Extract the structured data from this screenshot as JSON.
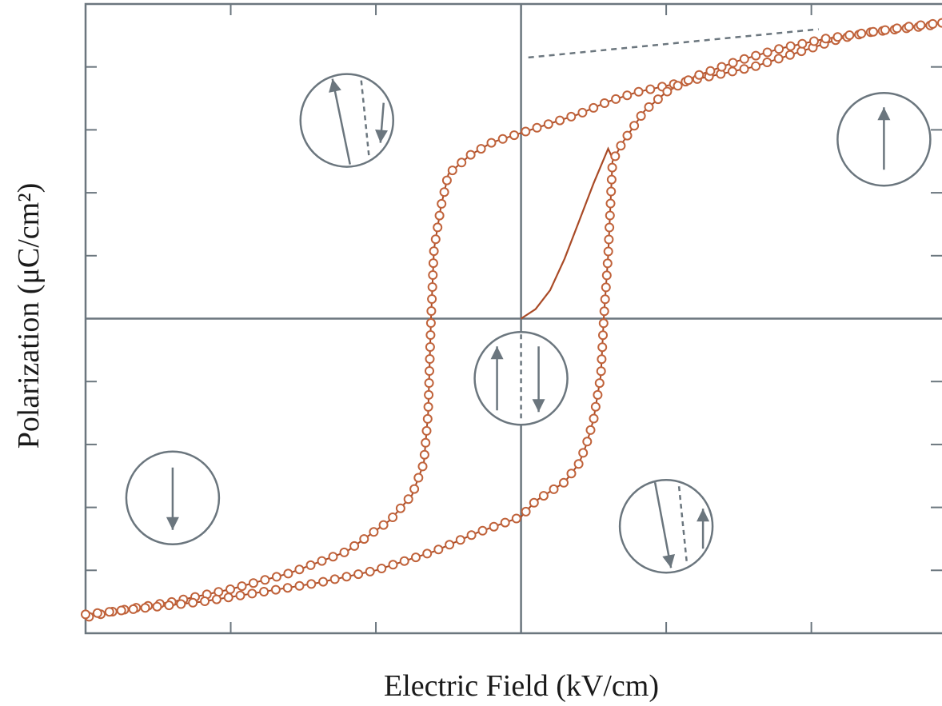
{
  "chart_data": {
    "type": "line",
    "xlabel": "Electric Field (kV/cm)",
    "ylabel": "Polarization (μC/cm²)",
    "xlim": [
      -3,
      2.9
    ],
    "ylim": [
      -5,
      5
    ],
    "x_ticks": [
      -2,
      -1,
      0,
      1,
      2
    ],
    "y_ticks": [
      -4,
      -3,
      -2,
      -1,
      1,
      2,
      3,
      4
    ],
    "zero_lines": true,
    "grid": false,
    "legend": "none",
    "series": [
      {
        "role": "upper-branch",
        "marker": "open-circle",
        "x": [
          2.9,
          2.8,
          2.6,
          2.4,
          2.2,
          2.0,
          1.8,
          1.6,
          1.4,
          1.2,
          1.0,
          0.8,
          0.6,
          0.4,
          0.2,
          0.0,
          -0.2,
          -0.35,
          -0.5,
          -0.55,
          -0.6,
          -0.62,
          -0.64,
          -0.67,
          -0.75,
          -0.9,
          -1.2,
          -1.6,
          -2.0,
          -2.4,
          -2.8,
          -3.0
        ],
        "y": [
          4.7,
          4.65,
          4.6,
          4.55,
          4.45,
          4.3,
          4.15,
          4.0,
          3.9,
          3.8,
          3.7,
          3.6,
          3.45,
          3.25,
          3.1,
          2.95,
          2.8,
          2.6,
          2.3,
          1.8,
          1.1,
          0.0,
          -1.5,
          -2.3,
          -2.8,
          -3.2,
          -3.7,
          -4.05,
          -4.3,
          -4.5,
          -4.65,
          -4.75
        ]
      },
      {
        "role": "lower-branch",
        "marker": "open-circle",
        "x": [
          -3.0,
          -2.6,
          -2.2,
          -1.8,
          -1.4,
          -1.0,
          -0.6,
          -0.3,
          0.0,
          0.1,
          0.3,
          0.4,
          0.45,
          0.5,
          0.55,
          0.57,
          0.6,
          0.63,
          0.7,
          0.85,
          1.0,
          1.2,
          1.5,
          1.8,
          2.1,
          2.4,
          2.7,
          2.9
        ],
        "y": [
          -4.7,
          -4.6,
          -4.5,
          -4.35,
          -4.2,
          -4.0,
          -3.7,
          -3.4,
          -3.15,
          -2.9,
          -2.6,
          -2.3,
          -2.0,
          -1.6,
          -0.9,
          0.0,
          1.0,
          2.5,
          2.8,
          3.3,
          3.6,
          3.85,
          4.1,
          4.3,
          4.45,
          4.55,
          4.65,
          4.7
        ]
      },
      {
        "role": "virgin-curve",
        "marker": "none",
        "x": [
          0.0,
          0.1,
          0.2,
          0.3,
          0.4,
          0.5,
          0.6,
          0.63
        ],
        "y": [
          0.0,
          0.15,
          0.45,
          0.95,
          1.55,
          2.15,
          2.7,
          2.55
        ]
      },
      {
        "role": "saturation-extrapolation",
        "style": "dashed",
        "x": [
          0.05,
          2.05
        ],
        "y": [
          4.15,
          4.6
        ]
      }
    ]
  },
  "domain_diagrams": [
    {
      "name": "domain-up",
      "arrows": [
        "up"
      ],
      "center": [
        2.5,
        2.85
      ]
    },
    {
      "name": "domain-down",
      "arrows": [
        "down"
      ],
      "center": [
        -2.4,
        -2.85
      ]
    },
    {
      "name": "domain-mixed-upper",
      "arrows": [
        "up-tilted",
        "down-dashed",
        "down-short"
      ],
      "center": [
        -1.2,
        3.15
      ]
    },
    {
      "name": "domain-mixed-center",
      "arrows": [
        "up",
        "dashed-divider",
        "down"
      ],
      "center": [
        0.0,
        -0.95
      ]
    },
    {
      "name": "domain-mixed-lower",
      "arrows": [
        "down-tilted",
        "up-dashed",
        "up-short"
      ],
      "center": [
        1.0,
        -3.3
      ]
    }
  ],
  "colors": {
    "data": "#c0623a",
    "curve": "#a94a26",
    "axis": "#6b767e",
    "icon": "#6b767e"
  }
}
